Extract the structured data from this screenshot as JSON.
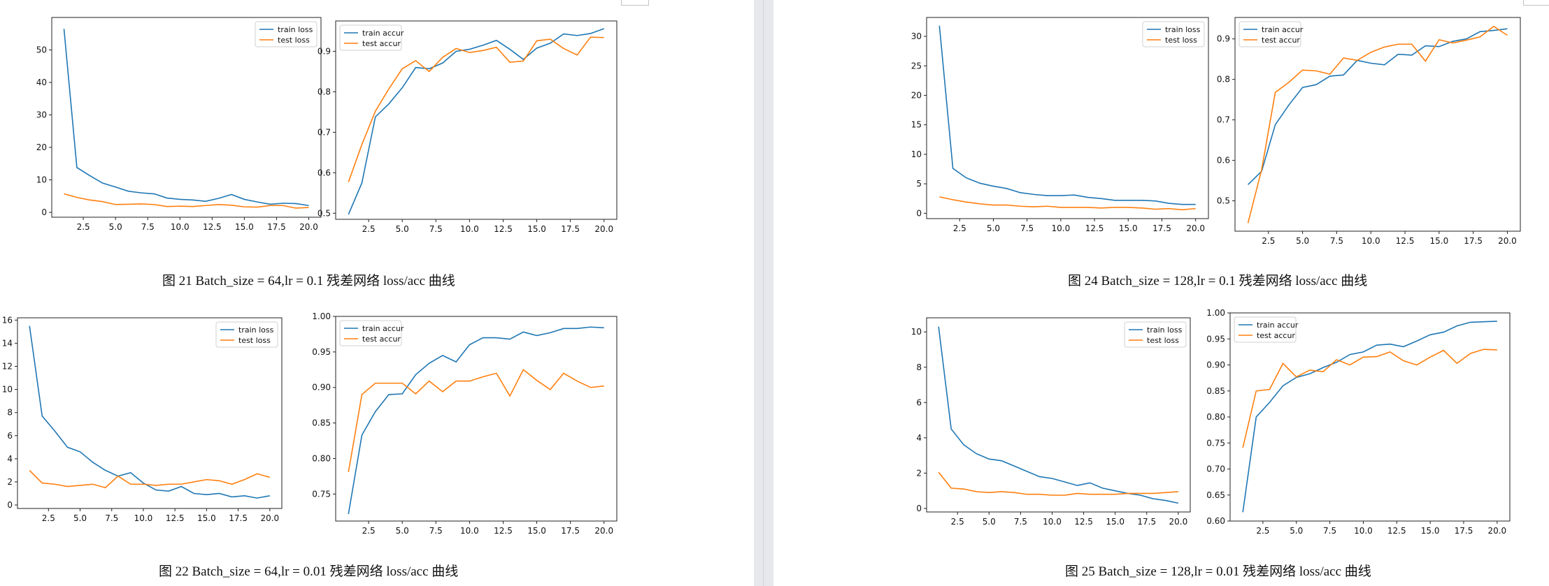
{
  "captions": [
    "图 21 Batch_size = 64,lr = 0.1 残差网络 loss/acc 曲线",
    "图 22 Batch_size = 64,lr = 0.01 残差网络 loss/acc 曲线",
    "图 24 Batch_size = 128,lr = 0.1 残差网络 loss/acc 曲线",
    "图 25 Batch_size = 128,lr = 0.01 残差网络 loss/acc 曲线"
  ],
  "colors": {
    "train": "#1f77b4",
    "test": "#ff7f0e"
  },
  "chart_data": [
    {
      "type": "line",
      "x": [
        1,
        2,
        3,
        4,
        5,
        6,
        7,
        8,
        9,
        10,
        11,
        12,
        13,
        14,
        15,
        16,
        17,
        18,
        19,
        20
      ],
      "xlim": [
        0.05,
        20.95
      ],
      "ylim": [
        -1.5,
        60
      ],
      "xticks": [
        2.5,
        5.0,
        7.5,
        10.0,
        12.5,
        15.0,
        17.5,
        20.0
      ],
      "yticks": [
        0,
        10,
        20,
        30,
        40,
        50
      ],
      "ydecimals": 0,
      "legend": "top-right",
      "series": [
        {
          "name": "train loss",
          "values": [
            56.5,
            13.8,
            11.3,
            9.0,
            7.8,
            6.5,
            6.0,
            5.7,
            4.4,
            4.0,
            3.8,
            3.4,
            4.3,
            5.5,
            4.0,
            3.2,
            2.5,
            2.8,
            2.7,
            2.1
          ]
        },
        {
          "name": "test loss",
          "values": [
            5.7,
            4.6,
            3.8,
            3.3,
            2.4,
            2.5,
            2.6,
            2.4,
            1.8,
            1.9,
            1.8,
            2.1,
            2.4,
            2.2,
            1.7,
            1.6,
            2.1,
            2.1,
            1.3,
            1.5
          ]
        }
      ]
    },
    {
      "type": "line",
      "x": [
        1,
        2,
        3,
        4,
        5,
        6,
        7,
        8,
        9,
        10,
        11,
        12,
        13,
        14,
        15,
        16,
        17,
        18,
        19,
        20
      ],
      "xlim": [
        0.05,
        20.95
      ],
      "ylim": [
        0.485,
        0.975
      ],
      "xticks": [
        2.5,
        5.0,
        7.5,
        10.0,
        12.5,
        15.0,
        17.5,
        20.0
      ],
      "yticks": [
        0.5,
        0.6,
        0.7,
        0.8,
        0.9
      ],
      "ydecimals": 1,
      "legend": "top-left",
      "series": [
        {
          "name": "train accur",
          "values": [
            0.497,
            0.575,
            0.738,
            0.77,
            0.81,
            0.86,
            0.857,
            0.871,
            0.9,
            0.905,
            0.915,
            0.927,
            0.905,
            0.88,
            0.908,
            0.92,
            0.943,
            0.939,
            0.944,
            0.956
          ]
        },
        {
          "name": "test accur",
          "values": [
            0.577,
            0.67,
            0.752,
            0.807,
            0.857,
            0.877,
            0.85,
            0.885,
            0.907,
            0.897,
            0.902,
            0.91,
            0.873,
            0.876,
            0.926,
            0.93,
            0.907,
            0.891,
            0.935,
            0.934
          ]
        }
      ]
    },
    {
      "type": "line",
      "x": [
        1,
        2,
        3,
        4,
        5,
        6,
        7,
        8,
        9,
        10,
        11,
        12,
        13,
        14,
        15,
        16,
        17,
        18,
        19,
        20
      ],
      "xlim": [
        0.05,
        20.95
      ],
      "ylim": [
        -0.3,
        16.2
      ],
      "xticks": [
        2.5,
        5.0,
        7.5,
        10.0,
        12.5,
        15.0,
        17.5,
        20.0
      ],
      "yticks": [
        0,
        2,
        4,
        6,
        8,
        10,
        12,
        14,
        16
      ],
      "ydecimals": 0,
      "legend": "top-right",
      "series": [
        {
          "name": "train loss",
          "values": [
            15.5,
            7.7,
            6.4,
            5.0,
            4.6,
            3.7,
            3.0,
            2.5,
            2.8,
            1.9,
            1.3,
            1.2,
            1.6,
            1.0,
            0.9,
            1.0,
            0.7,
            0.8,
            0.6,
            0.8
          ]
        },
        {
          "name": "test loss",
          "values": [
            3.0,
            1.9,
            1.8,
            1.6,
            1.7,
            1.8,
            1.5,
            2.5,
            1.8,
            1.8,
            1.7,
            1.8,
            1.8,
            2.0,
            2.2,
            2.1,
            1.8,
            2.2,
            2.7,
            2.4
          ]
        }
      ]
    },
    {
      "type": "line",
      "x": [
        1,
        2,
        3,
        4,
        5,
        6,
        7,
        8,
        9,
        10,
        11,
        12,
        13,
        14,
        15,
        16,
        17,
        18,
        19,
        20
      ],
      "xlim": [
        0.05,
        20.95
      ],
      "ylim": [
        0.712,
        1.0
      ],
      "xticks": [
        2.5,
        5.0,
        7.5,
        10.0,
        12.5,
        15.0,
        17.5,
        20.0
      ],
      "yticks": [
        0.75,
        0.8,
        0.85,
        0.9,
        0.95,
        1.0
      ],
      "ydecimals": 2,
      "legend": "top-left",
      "series": [
        {
          "name": "train accur",
          "values": [
            0.722,
            0.833,
            0.866,
            0.89,
            0.891,
            0.918,
            0.934,
            0.945,
            0.936,
            0.96,
            0.97,
            0.97,
            0.968,
            0.978,
            0.973,
            0.977,
            0.983,
            0.983,
            0.985,
            0.984
          ]
        },
        {
          "name": "test accur",
          "values": [
            0.781,
            0.89,
            0.906,
            0.906,
            0.906,
            0.891,
            0.909,
            0.894,
            0.909,
            0.909,
            0.915,
            0.92,
            0.888,
            0.925,
            0.91,
            0.897,
            0.92,
            0.909,
            0.9,
            0.902
          ]
        }
      ]
    },
    {
      "type": "line",
      "x": [
        1,
        2,
        3,
        4,
        5,
        6,
        7,
        8,
        9,
        10,
        11,
        12,
        13,
        14,
        15,
        16,
        17,
        18,
        19,
        20
      ],
      "xlim": [
        0.05,
        20.95
      ],
      "ylim": [
        -0.9,
        33.2
      ],
      "xticks": [
        2.5,
        5.0,
        7.5,
        10.0,
        12.5,
        15.0,
        17.5,
        20.0
      ],
      "yticks": [
        0,
        5,
        10,
        15,
        20,
        25,
        30
      ],
      "ydecimals": 0,
      "legend": "top-right",
      "series": [
        {
          "name": "train loss",
          "values": [
            31.8,
            7.6,
            6.0,
            5.1,
            4.6,
            4.2,
            3.5,
            3.2,
            3.0,
            3.0,
            3.1,
            2.7,
            2.5,
            2.2,
            2.2,
            2.2,
            2.1,
            1.7,
            1.5,
            1.5
          ]
        },
        {
          "name": "test loss",
          "values": [
            2.8,
            2.3,
            1.9,
            1.6,
            1.4,
            1.4,
            1.2,
            1.1,
            1.2,
            1.0,
            1.0,
            1.0,
            0.9,
            1.0,
            1.0,
            0.9,
            0.7,
            0.8,
            0.6,
            0.8
          ]
        }
      ]
    },
    {
      "type": "line",
      "x": [
        1,
        2,
        3,
        4,
        5,
        6,
        7,
        8,
        9,
        10,
        11,
        12,
        13,
        14,
        15,
        16,
        17,
        18,
        19,
        20
      ],
      "xlim": [
        0.05,
        20.95
      ],
      "ylim": [
        0.425,
        0.953
      ],
      "xticks": [
        2.5,
        5.0,
        7.5,
        10.0,
        12.5,
        15.0,
        17.5,
        20.0
      ],
      "yticks": [
        0.5,
        0.6,
        0.7,
        0.8,
        0.9
      ],
      "ydecimals": 1,
      "legend": "top-left",
      "series": [
        {
          "name": "train accur",
          "values": [
            0.54,
            0.573,
            0.688,
            0.737,
            0.78,
            0.787,
            0.808,
            0.811,
            0.847,
            0.84,
            0.836,
            0.862,
            0.86,
            0.883,
            0.881,
            0.894,
            0.9,
            0.918,
            0.921,
            0.925
          ]
        },
        {
          "name": "test accur",
          "values": [
            0.445,
            0.577,
            0.768,
            0.793,
            0.823,
            0.821,
            0.813,
            0.853,
            0.847,
            0.867,
            0.88,
            0.887,
            0.887,
            0.845,
            0.898,
            0.89,
            0.897,
            0.905,
            0.931,
            0.909
          ]
        }
      ]
    },
    {
      "type": "line",
      "x": [
        1,
        2,
        3,
        4,
        5,
        6,
        7,
        8,
        9,
        10,
        11,
        12,
        13,
        14,
        15,
        16,
        17,
        18,
        19,
        20
      ],
      "xlim": [
        0.05,
        20.95
      ],
      "ylim": [
        -0.2,
        10.8
      ],
      "xticks": [
        2.5,
        5.0,
        7.5,
        10.0,
        12.5,
        15.0,
        17.5,
        20.0
      ],
      "yticks": [
        0,
        2,
        4,
        6,
        8,
        10
      ],
      "ydecimals": 0,
      "legend": "top-right",
      "series": [
        {
          "name": "train loss",
          "values": [
            10.3,
            4.5,
            3.6,
            3.1,
            2.8,
            2.7,
            2.4,
            2.1,
            1.8,
            1.7,
            1.5,
            1.3,
            1.45,
            1.15,
            1.0,
            0.85,
            0.75,
            0.55,
            0.45,
            0.3
          ]
        },
        {
          "name": "test loss",
          "values": [
            2.05,
            1.15,
            1.1,
            0.95,
            0.9,
            0.95,
            0.9,
            0.8,
            0.8,
            0.75,
            0.75,
            0.85,
            0.8,
            0.8,
            0.8,
            0.85,
            0.85,
            0.85,
            0.9,
            0.95
          ]
        }
      ]
    },
    {
      "type": "line",
      "x": [
        1,
        2,
        3,
        4,
        5,
        6,
        7,
        8,
        9,
        10,
        11,
        12,
        13,
        14,
        15,
        16,
        17,
        18,
        19,
        20
      ],
      "xlim": [
        0.05,
        20.95
      ],
      "ylim": [
        0.6,
        1.0
      ],
      "xticks": [
        2.5,
        5.0,
        7.5,
        10.0,
        12.5,
        15.0,
        17.5,
        20.0
      ],
      "yticks": [
        0.6,
        0.65,
        0.7,
        0.75,
        0.8,
        0.85,
        0.9,
        0.95,
        1.0
      ],
      "ydecimals": 2,
      "legend": "top-left",
      "series": [
        {
          "name": "train accur",
          "values": [
            0.617,
            0.8,
            0.828,
            0.86,
            0.876,
            0.883,
            0.895,
            0.905,
            0.92,
            0.925,
            0.938,
            0.94,
            0.935,
            0.946,
            0.958,
            0.963,
            0.975,
            0.982,
            0.983,
            0.984
          ]
        },
        {
          "name": "test accur",
          "values": [
            0.741,
            0.85,
            0.853,
            0.903,
            0.877,
            0.89,
            0.887,
            0.91,
            0.9,
            0.915,
            0.916,
            0.925,
            0.908,
            0.9,
            0.915,
            0.928,
            0.903,
            0.922,
            0.93,
            0.929
          ]
        }
      ]
    }
  ]
}
